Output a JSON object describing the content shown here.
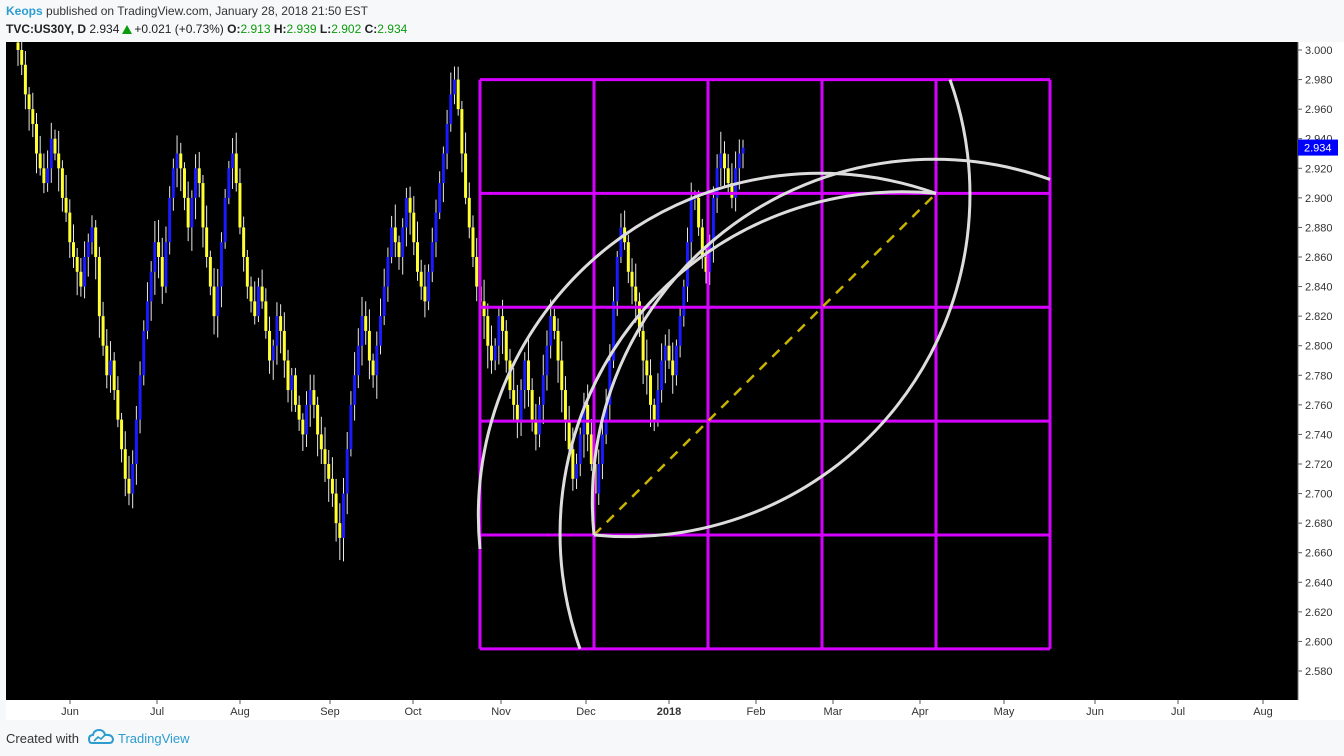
{
  "header": {
    "author": "Keops",
    "published_text": " published on TradingView.com, January 28, 2018 21:50 EST",
    "symbol": "TVC:US30Y, D",
    "price": "2.934",
    "change": "+0.021 (+0.73%)",
    "open_label": "O:",
    "open": "2.913",
    "high_label": "H:",
    "high": "2.939",
    "low_label": "L:",
    "low": "2.902",
    "close_label": "C:",
    "close": "2.934"
  },
  "footer": {
    "created_with": "Created with",
    "brand": "TradingView"
  },
  "colors": {
    "background": "#000000",
    "up_candle": "#1a1aff",
    "down_candle": "#ffff33",
    "grid_box": "#d600ff",
    "fan_lines": "#dddddd",
    "dashed_line": "#c8b400",
    "price_label_bg": "#0000ff"
  },
  "chart_data": {
    "type": "candlestick",
    "ylim": [
      2.57,
      3.0
    ],
    "price_label": "2.934",
    "y_ticks": [
      "3.000",
      "2.980",
      "2.960",
      "2.940",
      "2.920",
      "2.900",
      "2.880",
      "2.860",
      "2.840",
      "2.820",
      "2.800",
      "2.780",
      "2.760",
      "2.740",
      "2.720",
      "2.700",
      "2.680",
      "2.660",
      "2.640",
      "2.620",
      "2.600",
      "2.580"
    ],
    "x_ticks": [
      "Jun",
      "Jul",
      "Aug",
      "Sep",
      "Oct",
      "Nov",
      "Dec",
      "2018",
      "Feb",
      "Mar",
      "Apr",
      "May",
      "Jun",
      "Jul",
      "Aug"
    ],
    "close_series": [
      3.0,
      2.99,
      2.97,
      2.96,
      2.95,
      2.93,
      2.92,
      2.91,
      2.92,
      2.94,
      2.93,
      2.92,
      2.9,
      2.89,
      2.87,
      2.86,
      2.85,
      2.84,
      2.86,
      2.87,
      2.88,
      2.86,
      2.82,
      2.8,
      2.78,
      2.79,
      2.77,
      2.75,
      2.73,
      2.71,
      2.7,
      2.72,
      2.75,
      2.78,
      2.81,
      2.83,
      2.85,
      2.87,
      2.86,
      2.84,
      2.87,
      2.9,
      2.92,
      2.93,
      2.92,
      2.9,
      2.88,
      2.9,
      2.92,
      2.91,
      2.88,
      2.86,
      2.84,
      2.82,
      2.84,
      2.87,
      2.9,
      2.92,
      2.93,
      2.91,
      2.88,
      2.86,
      2.84,
      2.83,
      2.82,
      2.84,
      2.83,
      2.81,
      2.79,
      2.8,
      2.82,
      2.81,
      2.79,
      2.77,
      2.78,
      2.76,
      2.75,
      2.74,
      2.76,
      2.77,
      2.76,
      2.74,
      2.73,
      2.72,
      2.71,
      2.7,
      2.68,
      2.67,
      2.7,
      2.73,
      2.76,
      2.78,
      2.8,
      2.82,
      2.81,
      2.79,
      2.78,
      2.8,
      2.82,
      2.84,
      2.86,
      2.88,
      2.87,
      2.86,
      2.88,
      2.9,
      2.89,
      2.87,
      2.85,
      2.84,
      2.83,
      2.85,
      2.87,
      2.89,
      2.91,
      2.93,
      2.95,
      2.97,
      2.98,
      2.96,
      2.93,
      2.9,
      2.88,
      2.86,
      2.84,
      2.83,
      2.82,
      2.8,
      2.79,
      2.8,
      2.82,
      2.81,
      2.79,
      2.77,
      2.76,
      2.75,
      2.77,
      2.79,
      2.77,
      2.75,
      2.74,
      2.76,
      2.78,
      2.8,
      2.82,
      2.81,
      2.79,
      2.77,
      2.75,
      2.73,
      2.71,
      2.72,
      2.74,
      2.76,
      2.74,
      2.72,
      2.7,
      2.72,
      2.74,
      2.76,
      2.79,
      2.83,
      2.86,
      2.88,
      2.87,
      2.85,
      2.84,
      2.83,
      2.81,
      2.79,
      2.78,
      2.76,
      2.75,
      2.77,
      2.79,
      2.8,
      2.79,
      2.78,
      2.8,
      2.82,
      2.84,
      2.87,
      2.9,
      2.9,
      2.88,
      2.86,
      2.85,
      2.87,
      2.9,
      2.92,
      2.93,
      2.92,
      2.91,
      2.9,
      2.92,
      2.93,
      2.934
    ]
  },
  "drawings": {
    "gann_box_prices": [
      2.98,
      2.903,
      2.826,
      2.749,
      2.672,
      2.595
    ],
    "arc_radius_boxes": 3
  }
}
